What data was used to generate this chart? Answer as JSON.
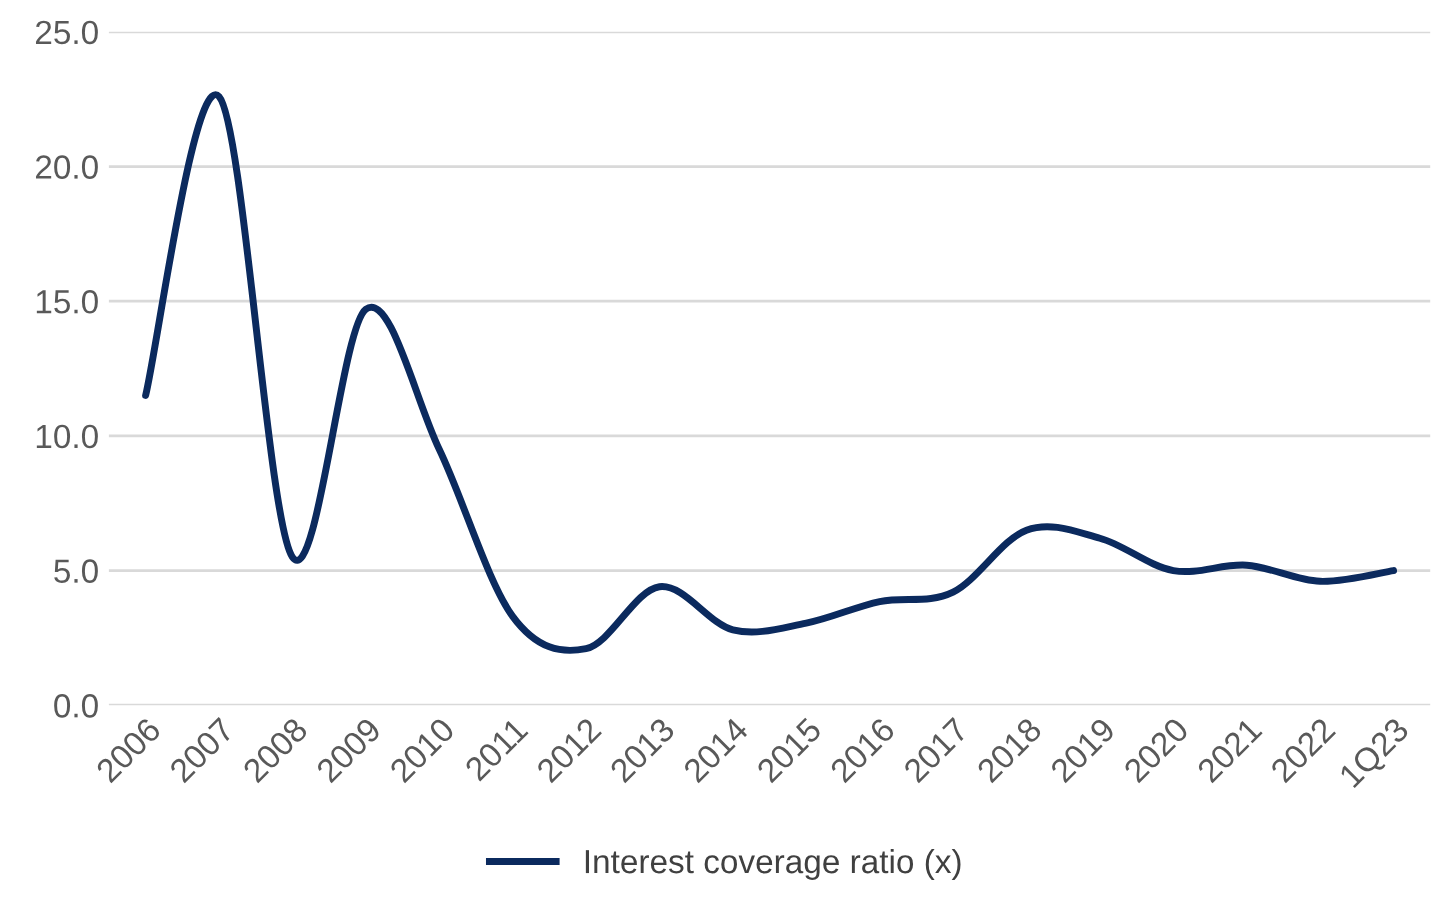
{
  "chart_data": {
    "type": "line",
    "categories": [
      "2006",
      "2007",
      "2008",
      "2009",
      "2010",
      "2011",
      "2012",
      "2013",
      "2014",
      "2015",
      "2016",
      "2017",
      "2018",
      "2019",
      "2020",
      "2021",
      "2022",
      "1Q23"
    ],
    "series": [
      {
        "name": "Interest coverage ratio (x)",
        "color": "#0b2a5e",
        "values": [
          11.5,
          22.6,
          5.5,
          14.7,
          9.5,
          3.3,
          2.1,
          4.4,
          2.8,
          3.05,
          3.85,
          4.2,
          6.5,
          6.2,
          5.0,
          5.2,
          4.6,
          5.0
        ]
      }
    ],
    "ylim": [
      0,
      25
    ],
    "yticks": [
      {
        "value": 0,
        "label": "0.0"
      },
      {
        "value": 5,
        "label": "5.0"
      },
      {
        "value": 10,
        "label": "10.0"
      },
      {
        "value": 15,
        "label": "15.0"
      },
      {
        "value": 20,
        "label": "20.0"
      },
      {
        "value": 25,
        "label": "25.0"
      }
    ],
    "grid": "y",
    "legend": "bottom",
    "marker": "none",
    "line_style": "solid"
  }
}
